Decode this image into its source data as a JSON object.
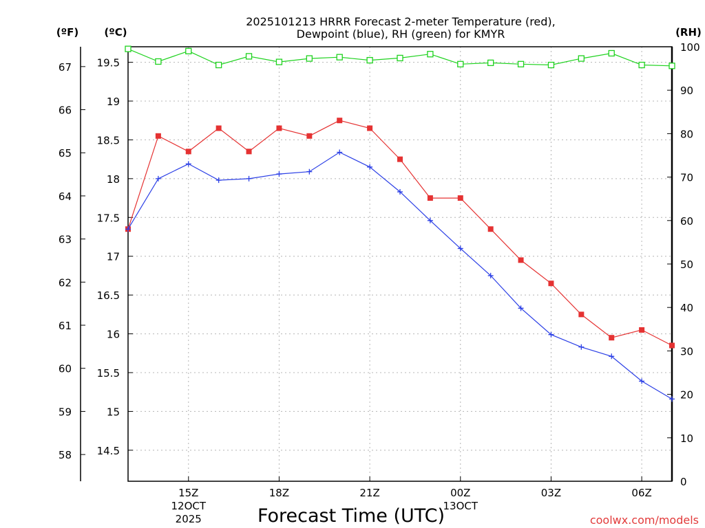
{
  "chart_data": {
    "type": "line",
    "title_line1": "2025101213 HRRR Forecast 2-meter Temperature (red),",
    "title_line2": "Dewpoint (blue), RH (green) for KMYR",
    "xlabel": "Forecast Time (UTC)",
    "credit": "coolwx.com/models",
    "unit_labels": {
      "fahrenheit": "(ºF)",
      "celsius": "(ºC)",
      "rh": "(RH)"
    },
    "x_hours": [
      13,
      14,
      15,
      16,
      17,
      18,
      19,
      20,
      21,
      22,
      23,
      24,
      25,
      26,
      27,
      28,
      29,
      30,
      31
    ],
    "xlim": [
      13,
      31
    ],
    "x_ticks": [
      {
        "hour": 15,
        "label": "15Z",
        "sub1": "12OCT",
        "sub2": "2025"
      },
      {
        "hour": 18,
        "label": "18Z",
        "sub1": "",
        "sub2": ""
      },
      {
        "hour": 21,
        "label": "21Z",
        "sub1": "",
        "sub2": ""
      },
      {
        "hour": 24,
        "label": "00Z",
        "sub1": "13OCT",
        "sub2": ""
      },
      {
        "hour": 27,
        "label": "03Z",
        "sub1": "",
        "sub2": ""
      },
      {
        "hour": 30,
        "label": "06Z",
        "sub1": "",
        "sub2": ""
      }
    ],
    "celsius_axis": {
      "ylim": [
        14.1,
        19.7
      ],
      "ticks": [
        14.5,
        15,
        15.5,
        16,
        16.5,
        17,
        17.5,
        18,
        18.5,
        19,
        19.5
      ],
      "tick_labels": [
        "14.5",
        "15",
        "15.5",
        "16",
        "16.5",
        "17",
        "17.5",
        "18",
        "18.5",
        "19",
        "19.5"
      ]
    },
    "fahrenheit_axis": {
      "ticks": [
        58,
        59,
        60,
        61,
        62,
        63,
        64,
        65,
        66,
        67
      ],
      "tick_labels": [
        "58",
        "59",
        "60",
        "61",
        "62",
        "63",
        "64",
        "65",
        "66",
        "67"
      ]
    },
    "rh_axis": {
      "ylim": [
        0,
        100
      ],
      "ticks": [
        0,
        10,
        20,
        30,
        40,
        50,
        60,
        70,
        80,
        90,
        100
      ],
      "tick_labels": [
        "0",
        "10",
        "20",
        "30",
        "40",
        "50",
        "60",
        "70",
        "80",
        "90",
        "100"
      ]
    },
    "series": [
      {
        "name": "Temperature",
        "axis": "celsius",
        "color": "#e53232",
        "marker": "filled-square",
        "values": [
          17.35,
          18.55,
          18.35,
          18.65,
          18.35,
          18.65,
          18.55,
          18.75,
          18.65,
          18.25,
          17.75,
          17.75,
          17.35,
          16.95,
          16.65,
          16.25,
          15.95,
          16.05,
          15.85
        ]
      },
      {
        "name": "Dewpoint",
        "axis": "celsius",
        "color": "#2b3fe6",
        "marker": "plus",
        "values": [
          17.35,
          18.0,
          18.19,
          17.98,
          18.0,
          18.06,
          18.09,
          18.34,
          18.15,
          17.83,
          17.46,
          17.1,
          16.75,
          16.33,
          15.99,
          15.83,
          15.71,
          15.39,
          15.16
        ]
      },
      {
        "name": "RH",
        "axis": "rh",
        "color": "#1ed21e",
        "marker": "open-square",
        "values": [
          99.5,
          96.6,
          99.0,
          95.8,
          97.8,
          96.5,
          97.3,
          97.6,
          96.9,
          97.4,
          98.3,
          96.0,
          96.3,
          96.0,
          95.8,
          97.3,
          98.5,
          95.8,
          95.6
        ]
      }
    ]
  }
}
